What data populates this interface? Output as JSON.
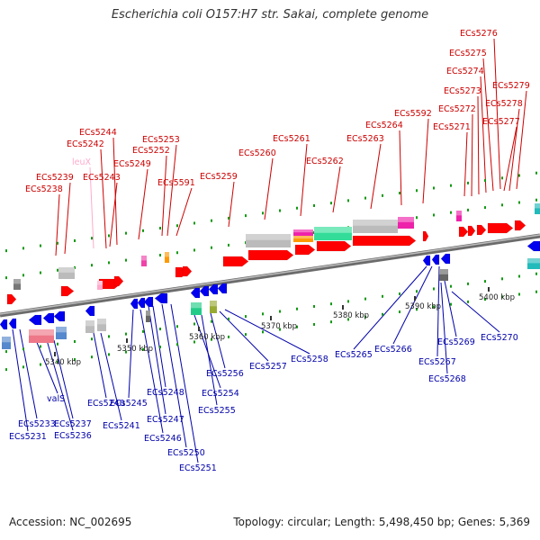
{
  "title": "Escherichia coli O157:H7 str. Sakai, complete genome",
  "footer": {
    "accession": "Accession: NC_002695",
    "summary": "Topology: circular; Length: 5,498,450 bp; Genes: 5,369"
  },
  "ruler": {
    "unit": "kbp",
    "ticks": [
      {
        "label": "5340 kbp"
      },
      {
        "label": "5350 kbp"
      },
      {
        "label": "5360 kbp"
      },
      {
        "label": "5370 kbp"
      },
      {
        "label": "5380 kbp"
      },
      {
        "label": "5390 kbp"
      },
      {
        "label": "5400 kbp"
      }
    ]
  },
  "colors": {
    "forward_label": "#cc0000",
    "reverse_label": "#0000aa",
    "trna_label": "#ffaacc",
    "forward_gene": "#ff0000",
    "reverse_gene": "#0000ee",
    "backbone": "#888888",
    "tick": "#119911"
  },
  "top_genes": [
    {
      "id": "ECs5238",
      "color": "#cc0000"
    },
    {
      "id": "ECs5239",
      "color": "#cc0000"
    },
    {
      "id": "leuX",
      "color": "#ffaacc"
    },
    {
      "id": "ECs5242",
      "color": "#cc0000"
    },
    {
      "id": "ECs5243",
      "color": "#cc0000"
    },
    {
      "id": "ECs5244",
      "color": "#cc0000"
    },
    {
      "id": "ECs5249",
      "color": "#cc0000"
    },
    {
      "id": "ECs5252",
      "color": "#cc0000"
    },
    {
      "id": "ECs5253",
      "color": "#cc0000"
    },
    {
      "id": "ECs5591",
      "color": "#cc0000"
    },
    {
      "id": "ECs5259",
      "color": "#cc0000"
    },
    {
      "id": "ECs5260",
      "color": "#cc0000"
    },
    {
      "id": "ECs5261",
      "color": "#cc0000"
    },
    {
      "id": "ECs5262",
      "color": "#cc0000"
    },
    {
      "id": "ECs5263",
      "color": "#cc0000"
    },
    {
      "id": "ECs5264",
      "color": "#cc0000"
    },
    {
      "id": "ECs5592",
      "color": "#cc0000"
    },
    {
      "id": "ECs5271",
      "color": "#cc0000"
    },
    {
      "id": "ECs5272",
      "color": "#cc0000"
    },
    {
      "id": "ECs5273",
      "color": "#cc0000"
    },
    {
      "id": "ECs5274",
      "color": "#cc0000"
    },
    {
      "id": "ECs5275",
      "color": "#cc0000"
    },
    {
      "id": "ECs5276",
      "color": "#cc0000"
    },
    {
      "id": "ECs5277",
      "color": "#cc0000"
    },
    {
      "id": "ECs5278",
      "color": "#cc0000"
    },
    {
      "id": "ECs5279",
      "color": "#cc0000"
    }
  ],
  "bottom_genes": [
    {
      "id": "ECs5231",
      "color": "#0000aa"
    },
    {
      "id": "ECs5233",
      "color": "#0000aa"
    },
    {
      "id": "valS",
      "color": "#0000aa"
    },
    {
      "id": "ECs5236",
      "color": "#0000aa"
    },
    {
      "id": "ECs5237",
      "color": "#0000aa"
    },
    {
      "id": "ECs5240",
      "color": "#0000aa"
    },
    {
      "id": "ECs5241",
      "color": "#0000aa"
    },
    {
      "id": "ECs5245",
      "color": "#0000aa"
    },
    {
      "id": "ECs5246",
      "color": "#0000aa"
    },
    {
      "id": "ECs5247",
      "color": "#0000aa"
    },
    {
      "id": "ECs5248",
      "color": "#0000aa"
    },
    {
      "id": "ECs5250",
      "color": "#0000aa"
    },
    {
      "id": "ECs5251",
      "color": "#0000aa"
    },
    {
      "id": "ECs5254",
      "color": "#0000aa"
    },
    {
      "id": "ECs5255",
      "color": "#0000aa"
    },
    {
      "id": "ECs5256",
      "color": "#0000aa"
    },
    {
      "id": "ECs5257",
      "color": "#0000aa"
    },
    {
      "id": "ECs5258",
      "color": "#0000aa"
    },
    {
      "id": "ECs5265",
      "color": "#0000aa"
    },
    {
      "id": "ECs5266",
      "color": "#0000aa"
    },
    {
      "id": "ECs5267",
      "color": "#0000aa"
    },
    {
      "id": "ECs5268",
      "color": "#0000aa"
    },
    {
      "id": "ECs5269",
      "color": "#0000aa"
    },
    {
      "id": "ECs5270",
      "color": "#0000aa"
    }
  ]
}
